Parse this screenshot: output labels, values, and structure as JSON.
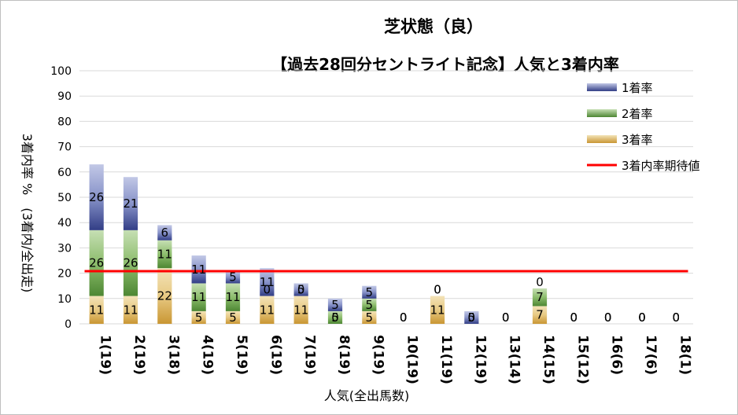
{
  "chart_data": {
    "type": "bar",
    "title": "芝状態（良）",
    "subtitle": "【過去28回分セントライト記念】人気と3着内率",
    "xlabel": "人気(全出馬数)",
    "ylabel": "3着内率 %　(3着内/全出走)",
    "ylim": [
      0,
      100
    ],
    "yticks": [
      0,
      10,
      20,
      30,
      40,
      50,
      60,
      70,
      80,
      90,
      100
    ],
    "categories": [
      "1(19)",
      "2(19)",
      "3(18)",
      "4(19)",
      "5(19)",
      "6(19)",
      "7(19)",
      "8(19)",
      "9(19)",
      "10(19)",
      "11(19)",
      "12(19)",
      "13(14)",
      "14(15)",
      "15(12)",
      "16(6)",
      "17(6)",
      "18(1)"
    ],
    "stacked": true,
    "series": [
      {
        "name": "3着率",
        "color": "#e2b04a",
        "values": [
          11,
          11,
          22,
          5,
          5,
          11,
          11,
          0,
          5,
          0,
          11,
          0,
          0,
          7,
          0,
          0,
          0,
          0
        ]
      },
      {
        "name": "2着率",
        "color": "#5f9e3f",
        "values": [
          26,
          26,
          11,
          11,
          11,
          0,
          0,
          5,
          5,
          0,
          0,
          0,
          0,
          7,
          0,
          0,
          0,
          0
        ]
      },
      {
        "name": "1着率",
        "color": "#3f4e9a",
        "values": [
          26,
          21,
          6,
          11,
          5,
          11,
          5,
          5,
          5,
          0,
          0,
          5,
          0,
          0,
          0,
          0,
          0,
          0
        ]
      }
    ],
    "reference_line": {
      "name": "3着内率期待値",
      "color": "#ff0000",
      "value": 20.8
    },
    "legend": {
      "position": "top-right",
      "entries": [
        "1着率",
        "2着率",
        "3着率",
        "3着内率期待値"
      ]
    },
    "grid": true
  }
}
